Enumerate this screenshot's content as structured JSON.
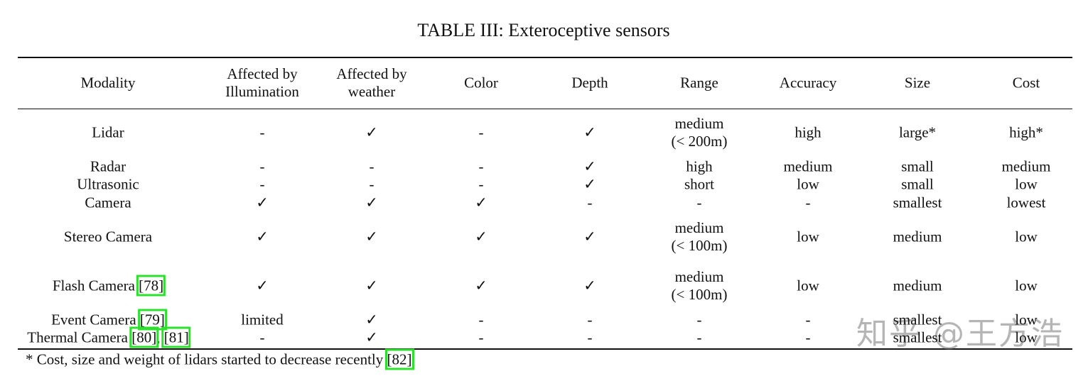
{
  "table": {
    "title": "TABLE III: Exteroceptive sensors",
    "columns": [
      [
        "Modality"
      ],
      [
        "Affected by",
        "Illumination"
      ],
      [
        "Affected by",
        "weather"
      ],
      [
        "Color"
      ],
      [
        "Depth"
      ],
      [
        "Range"
      ],
      [
        "Accuracy"
      ],
      [
        "Size"
      ],
      [
        "Cost"
      ]
    ],
    "rows": [
      {
        "modality": [
          {
            "text": "Lidar"
          }
        ],
        "cells": [
          "-",
          "✓",
          "-",
          "✓",
          [
            "medium",
            "(< 200m)"
          ],
          "high",
          "large*",
          "high*"
        ]
      },
      {
        "modality": [
          {
            "text": "Radar"
          }
        ],
        "cells": [
          "-",
          "-",
          "-",
          "✓",
          "high",
          "medium",
          "small",
          "medium"
        ]
      },
      {
        "modality": [
          {
            "text": "Ultrasonic"
          }
        ],
        "cells": [
          "-",
          "-",
          "-",
          "✓",
          "short",
          "low",
          "small",
          "low"
        ]
      },
      {
        "modality": [
          {
            "text": "Camera"
          }
        ],
        "cells": [
          "✓",
          "✓",
          "✓",
          "-",
          "-",
          "-",
          "smallest",
          "lowest"
        ]
      },
      {
        "modality": [
          {
            "text": "Stereo Camera"
          }
        ],
        "cells": [
          "✓",
          "✓",
          "✓",
          "✓",
          [
            "medium",
            "(< 100m)"
          ],
          "low",
          "medium",
          "low"
        ]
      },
      {
        "modality": [
          {
            "text": "Flash Camera "
          },
          {
            "text": "[78]",
            "boxed": true
          }
        ],
        "cells": [
          "✓",
          "✓",
          "✓",
          "✓",
          [
            "medium",
            "(< 100m)"
          ],
          "low",
          "medium",
          "low"
        ]
      },
      {
        "modality": [
          {
            "text": "Event Camera "
          },
          {
            "text": "[79]",
            "boxed": true
          }
        ],
        "cells": [
          "limited",
          "✓",
          "-",
          "-",
          "-",
          "-",
          "smallest",
          "low"
        ]
      },
      {
        "modality": [
          {
            "text": "Thermal Camera "
          },
          {
            "text": "[80]",
            "boxed": true
          },
          {
            "text": ", "
          },
          {
            "text": "[81]",
            "boxed": true
          }
        ],
        "cells": [
          "-",
          "✓",
          "-",
          "-",
          "-",
          "-",
          "smallest",
          "low"
        ]
      }
    ],
    "footnote": [
      {
        "text": "* Cost, size and weight of lidars started to decrease recently "
      },
      {
        "text": "[82]",
        "boxed": true
      }
    ]
  },
  "watermark": "知乎 @王方浩"
}
